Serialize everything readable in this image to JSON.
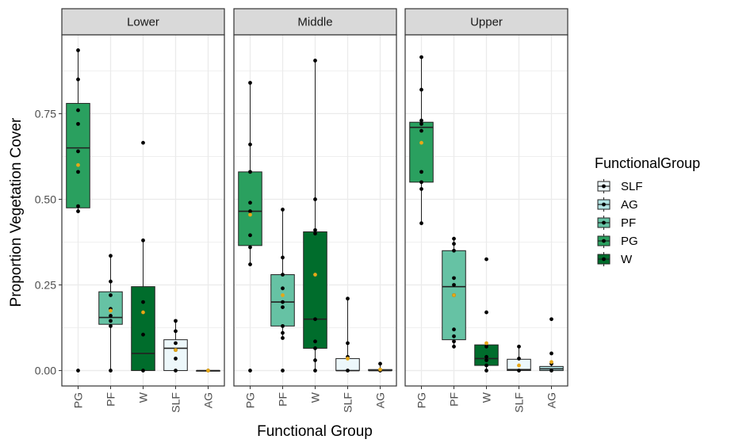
{
  "chart_data": {
    "type": "box",
    "title": "",
    "xlabel": "Functional Group",
    "ylabel": "Proportion Vegetation Cover",
    "ylim": [
      -0.045,
      0.98
    ],
    "yticks": [
      0.0,
      0.25,
      0.5,
      0.75
    ],
    "ytick_labels": [
      "0.00",
      "0.25",
      "0.50",
      "0.75"
    ],
    "categories": [
      "PG",
      "PF",
      "W",
      "SLF",
      "AG"
    ],
    "grid": true,
    "legend": {
      "title": "FunctionalGroup",
      "position": "right",
      "entries": [
        "SLF",
        "AG",
        "PF",
        "PG",
        "W"
      ]
    },
    "colors": {
      "PG": "#2aa05f",
      "PF": "#66c2a4",
      "W": "#006d2c",
      "SLF": "#edf8fb",
      "AG": "#b2e2e2",
      "mean": "#e6a817",
      "point": "#000000",
      "strip_fill": "#d9d9d9",
      "grid": "#ebebeb"
    },
    "panels": [
      {
        "name": "Lower",
        "groups": [
          {
            "group": "PG",
            "q1": 0.475,
            "median": 0.65,
            "q3": 0.78,
            "whisker_low": 0.465,
            "whisker_high": 0.935,
            "mean": 0.6,
            "points": [
              0.935,
              0.85,
              0.76,
              0.72,
              0.64,
              0.58,
              0.48,
              0.465,
              0.0
            ]
          },
          {
            "group": "PF",
            "q1": 0.135,
            "median": 0.155,
            "q3": 0.23,
            "whisker_low": 0.0,
            "whisker_high": 0.335,
            "mean": 0.175,
            "points": [
              0.335,
              0.26,
              0.22,
              0.18,
              0.16,
              0.145,
              0.13,
              0.0
            ]
          },
          {
            "group": "W",
            "q1": 0.0,
            "median": 0.05,
            "q3": 0.245,
            "whisker_low": 0.0,
            "whisker_high": 0.38,
            "mean": 0.17,
            "points": [
              0.665,
              0.38,
              0.2,
              0.17,
              0.105,
              0.0
            ]
          },
          {
            "group": "SLF",
            "q1": 0.0,
            "median": 0.065,
            "q3": 0.09,
            "whisker_low": 0.0,
            "whisker_high": 0.145,
            "mean": 0.06,
            "points": [
              0.145,
              0.115,
              0.08,
              0.06,
              0.035,
              0.0
            ]
          },
          {
            "group": "AG",
            "q1": 0.0,
            "median": 0.0,
            "q3": 0.0,
            "whisker_low": 0.0,
            "whisker_high": 0.0,
            "mean": 0.0,
            "points": [
              0.0
            ]
          }
        ]
      },
      {
        "name": "Middle",
        "groups": [
          {
            "group": "PG",
            "q1": 0.365,
            "median": 0.465,
            "q3": 0.58,
            "whisker_low": 0.31,
            "whisker_high": 0.84,
            "mean": 0.455,
            "points": [
              0.84,
              0.66,
              0.58,
              0.49,
              0.465,
              0.395,
              0.36,
              0.31,
              0.0
            ]
          },
          {
            "group": "PF",
            "q1": 0.13,
            "median": 0.2,
            "q3": 0.28,
            "whisker_low": 0.095,
            "whisker_high": 0.47,
            "mean": 0.22,
            "points": [
              0.47,
              0.33,
              0.28,
              0.24,
              0.2,
              0.185,
              0.13,
              0.11,
              0.095,
              0.0
            ]
          },
          {
            "group": "W",
            "q1": 0.065,
            "median": 0.15,
            "q3": 0.405,
            "whisker_low": 0.0,
            "whisker_high": 0.905,
            "mean": 0.28,
            "points": [
              0.905,
              0.5,
              0.41,
              0.4,
              0.15,
              0.085,
              0.065,
              0.03,
              0.0
            ]
          },
          {
            "group": "SLF",
            "q1": 0.0,
            "median": 0.0,
            "q3": 0.035,
            "whisker_low": 0.0,
            "whisker_high": 0.21,
            "mean": 0.035,
            "points": [
              0.21,
              0.08,
              0.04,
              0.0
            ]
          },
          {
            "group": "AG",
            "q1": 0.0,
            "median": 0.0,
            "q3": 0.003,
            "whisker_low": 0.0,
            "whisker_high": 0.02,
            "mean": 0.003,
            "points": [
              0.02,
              0.0
            ]
          }
        ]
      },
      {
        "name": "Upper",
        "groups": [
          {
            "group": "PG",
            "q1": 0.55,
            "median": 0.71,
            "q3": 0.725,
            "whisker_low": 0.43,
            "whisker_high": 0.915,
            "mean": 0.665,
            "points": [
              0.915,
              0.82,
              0.73,
              0.72,
              0.7,
              0.58,
              0.55,
              0.53,
              0.43
            ]
          },
          {
            "group": "PF",
            "q1": 0.09,
            "median": 0.245,
            "q3": 0.35,
            "whisker_low": 0.07,
            "whisker_high": 0.385,
            "mean": 0.22,
            "points": [
              0.385,
              0.37,
              0.35,
              0.27,
              0.25,
              0.22,
              0.12,
              0.1,
              0.085,
              0.07
            ]
          },
          {
            "group": "W",
            "q1": 0.015,
            "median": 0.035,
            "q3": 0.075,
            "whisker_low": 0.0,
            "whisker_high": 0.075,
            "mean": 0.08,
            "points": [
              0.325,
              0.17,
              0.07,
              0.04,
              0.03,
              0.015,
              0.0
            ]
          },
          {
            "group": "SLF",
            "q1": 0.0,
            "median": 0.003,
            "q3": 0.033,
            "whisker_low": 0.0,
            "whisker_high": 0.07,
            "mean": 0.015,
            "points": [
              0.07,
              0.035,
              0.0
            ]
          },
          {
            "group": "AG",
            "q1": 0.0,
            "median": 0.005,
            "q3": 0.012,
            "whisker_low": 0.0,
            "whisker_high": 0.02,
            "mean": 0.025,
            "points": [
              0.15,
              0.05,
              0.02,
              0.0
            ]
          }
        ]
      }
    ]
  }
}
